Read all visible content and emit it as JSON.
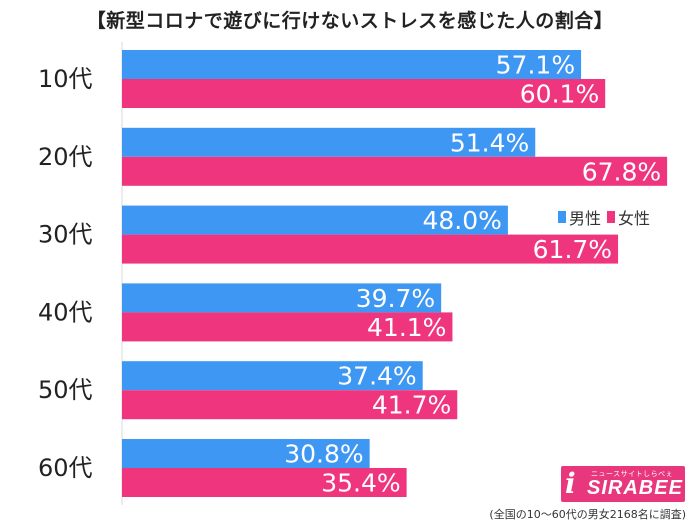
{
  "header": {
    "title": "【新型コロナで遊びに行けないストレスを感じた人の割合】"
  },
  "legend": {
    "items": [
      {
        "label": "男性",
        "color": "#3d97f3"
      },
      {
        "label": "女性",
        "color": "#f0357f"
      }
    ]
  },
  "footnote": "(全国の10〜60代の男女2168名に調査)",
  "logo": {
    "name": "SIRABEE",
    "sub": "ニュースサイトしらべぇ"
  },
  "chart_data": {
    "type": "bar",
    "orientation": "horizontal",
    "title": "【新型コロナで遊びに行けないストレスを感じた人の割合】",
    "categories": [
      "10代",
      "20代",
      "30代",
      "40代",
      "50代",
      "60代"
    ],
    "series": [
      {
        "name": "男性",
        "color": "#3d97f3",
        "values": [
          57.1,
          51.4,
          48.0,
          39.7,
          37.4,
          30.8
        ]
      },
      {
        "name": "女性",
        "color": "#f0357f",
        "values": [
          60.1,
          67.8,
          61.7,
          41.1,
          41.7,
          35.4
        ]
      }
    ],
    "value_labels": [
      [
        "57.1%",
        "51.4%",
        "48.0%",
        "39.7%",
        "37.4%",
        "30.8%"
      ],
      [
        "60.1%",
        "67.8%",
        "61.7%",
        "41.1%",
        "41.7%",
        "35.4%"
      ]
    ],
    "unit": "%",
    "xlim": [
      0,
      100
    ],
    "grid": false,
    "legend_position": "right"
  }
}
